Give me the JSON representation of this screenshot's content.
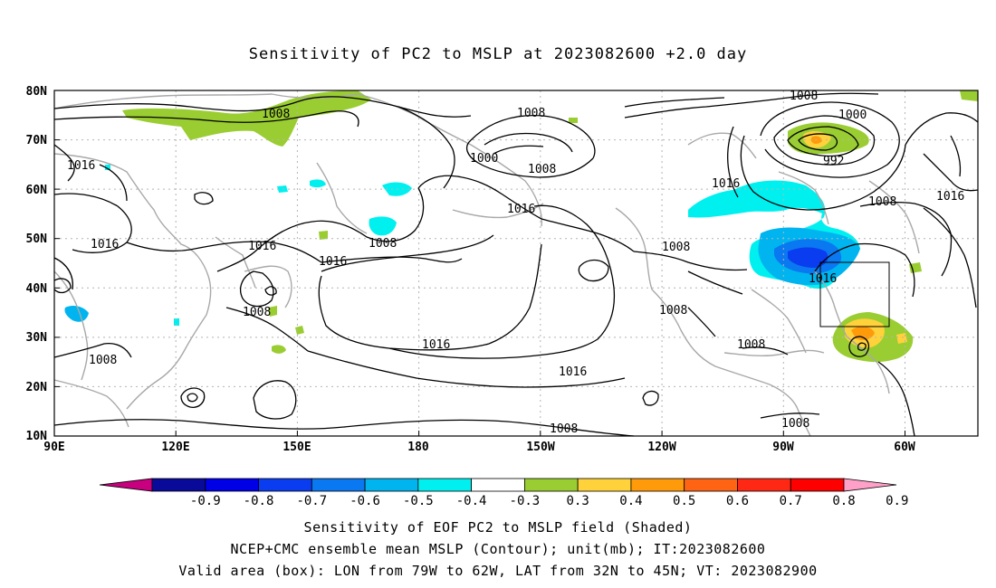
{
  "title": "Sensitivity of PC2 to MSLP at 2023082600 +2.0 day",
  "map": {
    "lat_labels": [
      "80N",
      "70N",
      "60N",
      "50N",
      "40N",
      "30N",
      "20N",
      "10N"
    ],
    "lon_labels": [
      "90E",
      "120E",
      "150E",
      "180",
      "150W",
      "120W",
      "90W",
      "60W"
    ],
    "contour_labels": {
      "c1": "1008",
      "c2": "1016",
      "c3": "1016",
      "c4": "1016",
      "c5": "1008",
      "c6": "1008",
      "c7": "1008",
      "c8": "1000",
      "c9": "1008",
      "c10": "1016",
      "c11": "1016",
      "c12": "1016",
      "c13": "1016",
      "c14": "1008",
      "c15": "1008",
      "c16": "1000",
      "c17": "992",
      "c18": "1016",
      "c19": "1008",
      "c20": "1016",
      "c21": "1008",
      "c22": "1008",
      "c23": "1008",
      "c24": "1016",
      "c25": "1008"
    },
    "valid_box": {
      "lon_west": "79W",
      "lon_east": "62W",
      "lat_south": "32N",
      "lat_north": "45N"
    }
  },
  "colorbar": {
    "labels": [
      "-0.9",
      "-0.8",
      "-0.7",
      "-0.6",
      "-0.5",
      "-0.4",
      "-0.3",
      "0.3",
      "0.4",
      "0.5",
      "0.6",
      "0.7",
      "0.8",
      "0.9"
    ],
    "colors": [
      "#c8007f",
      "#0a0a9a",
      "#0000e6",
      "#0a3cf0",
      "#0a78f0",
      "#00b4f0",
      "#00f0f0",
      "#ffffff",
      "#9acd32",
      "#ffd23c",
      "#ff9a0a",
      "#ff6414",
      "#ff2814",
      "#ff0000",
      "#ffa0c8"
    ]
  },
  "footer": {
    "line1": "Sensitivity of EOF PC2 to MSLP field (Shaded)",
    "line2": "NCEP+CMC ensemble mean MSLP (Contour); unit(mb); IT:2023082600",
    "line3": "Valid area (box): LON from 79W to 62W, LAT from 32N to 45N; VT: 2023082900"
  }
}
